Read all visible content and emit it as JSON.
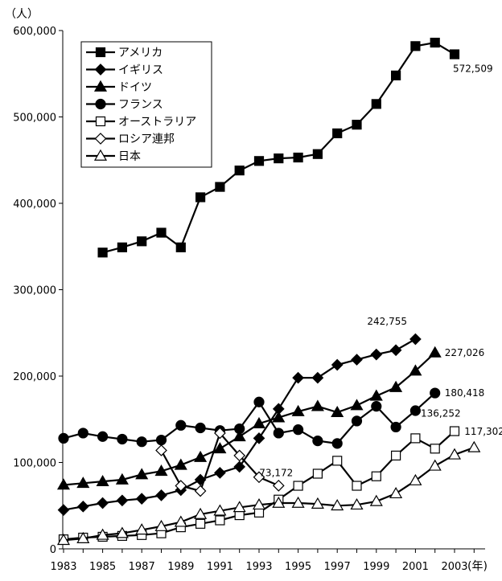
{
  "chart_data": {
    "type": "line",
    "y_unit_label": "（人）",
    "x_unit_label": "(年)",
    "ylim": [
      0,
      600000
    ],
    "yticks": [
      0,
      100000,
      200000,
      300000,
      400000,
      500000,
      600000
    ],
    "ytick_labels": [
      "0",
      "100,000",
      "200,000",
      "300,000",
      "400,000",
      "500,000",
      "600,000"
    ],
    "xlim": [
      1983,
      2004
    ],
    "xticks": [
      1983,
      1985,
      1987,
      1989,
      1991,
      1993,
      1995,
      1997,
      1999,
      2001,
      2003
    ],
    "xtick_labels": [
      "1983",
      "1985",
      "1987",
      "1989",
      "1991",
      "1993",
      "1995",
      "1997",
      "1999",
      "2001",
      "2003"
    ],
    "legend_position": "top-left",
    "series": [
      {
        "name": "アメリカ",
        "marker": "square-filled",
        "color": "#000000",
        "points": [
          [
            1985,
            343000
          ],
          [
            1986,
            349000
          ],
          [
            1987,
            356000
          ],
          [
            1988,
            366000
          ],
          [
            1989,
            349000
          ],
          [
            1990,
            407000
          ],
          [
            1991,
            419000
          ],
          [
            1992,
            438000
          ],
          [
            1993,
            449000
          ],
          [
            1994,
            452000
          ],
          [
            1995,
            453000
          ],
          [
            1996,
            457000
          ],
          [
            1997,
            481000
          ],
          [
            1998,
            491000
          ],
          [
            1999,
            515000
          ],
          [
            2000,
            548000
          ],
          [
            2001,
            582000
          ],
          [
            2002,
            586000
          ],
          [
            2003,
            572509
          ]
        ]
      },
      {
        "name": "イギリス",
        "marker": "diamond-filled",
        "color": "#000000",
        "points": [
          [
            1983,
            45000
          ],
          [
            1984,
            49000
          ],
          [
            1985,
            53000
          ],
          [
            1986,
            56000
          ],
          [
            1987,
            58000
          ],
          [
            1988,
            62000
          ],
          [
            1989,
            68000
          ],
          [
            1990,
            80000
          ],
          [
            1991,
            88000
          ],
          [
            1992,
            95000
          ],
          [
            1993,
            128000
          ],
          [
            1994,
            162000
          ],
          [
            1995,
            198000
          ],
          [
            1996,
            198000
          ],
          [
            1997,
            213000
          ],
          [
            1998,
            219000
          ],
          [
            1999,
            225000
          ],
          [
            2000,
            230000
          ],
          [
            2001,
            242755
          ]
        ]
      },
      {
        "name": "ドイツ",
        "marker": "triangle-filled",
        "color": "#000000",
        "points": [
          [
            1983,
            74000
          ],
          [
            1984,
            76000
          ],
          [
            1985,
            78000
          ],
          [
            1986,
            80000
          ],
          [
            1987,
            86000
          ],
          [
            1988,
            90000
          ],
          [
            1989,
            97000
          ],
          [
            1990,
            106000
          ],
          [
            1991,
            116000
          ],
          [
            1992,
            130000
          ],
          [
            1993,
            145000
          ],
          [
            1994,
            152000
          ],
          [
            1995,
            159000
          ],
          [
            1996,
            165000
          ],
          [
            1997,
            158000
          ],
          [
            1998,
            166000
          ],
          [
            1999,
            177000
          ],
          [
            2000,
            187000
          ],
          [
            2001,
            206000
          ],
          [
            2002,
            227026
          ]
        ]
      },
      {
        "name": "フランス",
        "marker": "circle-filled",
        "color": "#000000",
        "points": [
          [
            1983,
            128000
          ],
          [
            1984,
            134000
          ],
          [
            1985,
            130000
          ],
          [
            1986,
            127000
          ],
          [
            1987,
            124000
          ],
          [
            1988,
            126000
          ],
          [
            1989,
            143000
          ],
          [
            1990,
            140000
          ],
          [
            1991,
            137000
          ],
          [
            1992,
            139000
          ],
          [
            1993,
            170000
          ],
          [
            1994,
            134000
          ],
          [
            1995,
            138000
          ],
          [
            1996,
            125000
          ],
          [
            1997,
            122000
          ],
          [
            1998,
            148000
          ],
          [
            1999,
            165000
          ],
          [
            2000,
            141000
          ],
          [
            2001,
            160000
          ],
          [
            2002,
            180418
          ]
        ]
      },
      {
        "name": "オーストラリア",
        "marker": "square-open",
        "color": "#000000",
        "points": [
          [
            1983,
            11000
          ],
          [
            1984,
            13000
          ],
          [
            1985,
            14000
          ],
          [
            1986,
            15000
          ],
          [
            1987,
            16000
          ],
          [
            1988,
            18000
          ],
          [
            1989,
            25000
          ],
          [
            1990,
            29000
          ],
          [
            1991,
            33000
          ],
          [
            1992,
            39000
          ],
          [
            1993,
            42000
          ],
          [
            1994,
            57000
          ],
          [
            1995,
            73000
          ],
          [
            1996,
            87000
          ],
          [
            1997,
            102000
          ],
          [
            1998,
            73000
          ],
          [
            1999,
            84000
          ],
          [
            2000,
            108000
          ],
          [
            2001,
            128000
          ],
          [
            2002,
            116000
          ],
          [
            2003,
            136252
          ]
        ]
      },
      {
        "name": "ロシア連邦",
        "marker": "diamond-open",
        "color": "#000000",
        "points": [
          [
            1988,
            114000
          ],
          [
            1989,
            73000
          ],
          [
            1990,
            67000
          ],
          [
            1991,
            134000
          ],
          [
            1992,
            108000
          ],
          [
            1993,
            83000
          ],
          [
            1994,
            73172
          ]
        ]
      },
      {
        "name": "日本",
        "marker": "triangle-open",
        "color": "#000000",
        "points": [
          [
            1983,
            10000
          ],
          [
            1984,
            12000
          ],
          [
            1985,
            16000
          ],
          [
            1986,
            18000
          ],
          [
            1987,
            22000
          ],
          [
            1988,
            26000
          ],
          [
            1989,
            31000
          ],
          [
            1990,
            40000
          ],
          [
            1991,
            44000
          ],
          [
            1992,
            48000
          ],
          [
            1993,
            51000
          ],
          [
            1994,
            53000
          ],
          [
            1995,
            53000
          ],
          [
            1996,
            52000
          ],
          [
            1997,
            50000
          ],
          [
            1998,
            51000
          ],
          [
            1999,
            55000
          ],
          [
            2000,
            64000
          ],
          [
            2001,
            79000
          ],
          [
            2002,
            96000
          ],
          [
            2003,
            109000
          ],
          [
            2004,
            117302
          ]
        ]
      }
    ],
    "annotations": [
      {
        "text": "572,509",
        "series": "アメリカ"
      },
      {
        "text": "242,755",
        "series": "イギリス"
      },
      {
        "text": "227,026",
        "series": "ドイツ"
      },
      {
        "text": "180,418",
        "series": "フランス"
      },
      {
        "text": "136,252",
        "series": "オーストラリア"
      },
      {
        "text": "73,172",
        "series": "ロシア連邦"
      },
      {
        "text": "117,302",
        "series": "日本"
      }
    ]
  }
}
